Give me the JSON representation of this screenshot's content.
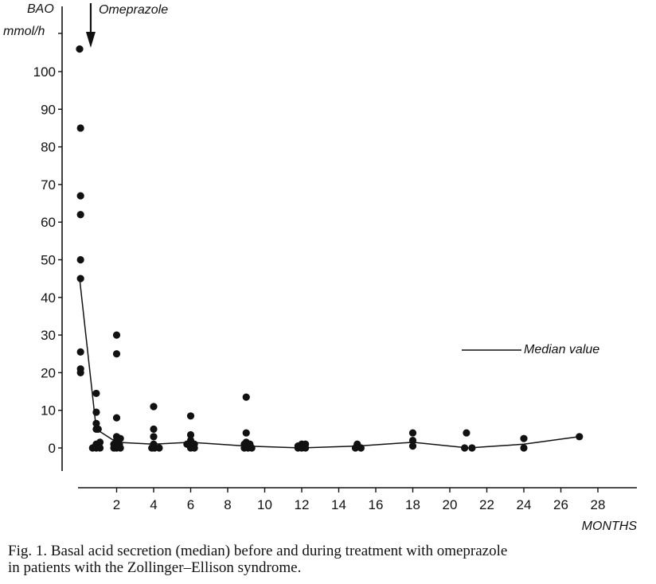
{
  "chart_data": {
    "type": "scatter",
    "yaxis_label_line1": "BAO",
    "yaxis_label_line2": "mmol/h",
    "xlabel": "MONTHS",
    "ylim": [
      -5,
      112
    ],
    "xlim": [
      -1.2,
      30
    ],
    "y_ticks": [
      0,
      10,
      20,
      30,
      40,
      50,
      60,
      70,
      80,
      90,
      100
    ],
    "x_ticks": [
      2,
      4,
      6,
      8,
      10,
      12,
      14,
      16,
      18,
      20,
      22,
      24,
      26,
      28
    ],
    "arrow_label": "Omeprazole",
    "arrow_x": 0.6,
    "points": [
      [
        0,
        106
      ],
      [
        0.05,
        85
      ],
      [
        0.05,
        67
      ],
      [
        0.05,
        62
      ],
      [
        0.05,
        50
      ],
      [
        0.05,
        45
      ],
      [
        0.05,
        25.5
      ],
      [
        0.05,
        21
      ],
      [
        0.05,
        20
      ],
      [
        0.7,
        0
      ],
      [
        0.9,
        0
      ],
      [
        0.9,
        1
      ],
      [
        1.0,
        0.5
      ],
      [
        0.9,
        5
      ],
      [
        1.0,
        5
      ],
      [
        0.9,
        6.5
      ],
      [
        0.9,
        9.5
      ],
      [
        0.9,
        14.5
      ],
      [
        1.1,
        0
      ],
      [
        1.1,
        1.5
      ],
      [
        2,
        30
      ],
      [
        2,
        25
      ],
      [
        2,
        8
      ],
      [
        2,
        3
      ],
      [
        2,
        2
      ],
      [
        1.85,
        1
      ],
      [
        2.15,
        1
      ],
      [
        1.85,
        0
      ],
      [
        2,
        0
      ],
      [
        2.2,
        0
      ],
      [
        2.2,
        2.5
      ],
      [
        4,
        11
      ],
      [
        4,
        5
      ],
      [
        4,
        3
      ],
      [
        4,
        1
      ],
      [
        3.9,
        0
      ],
      [
        4.05,
        0
      ],
      [
        4.3,
        0
      ],
      [
        6,
        8.5
      ],
      [
        6,
        3.5
      ],
      [
        6,
        2
      ],
      [
        6,
        1
      ],
      [
        5.8,
        1
      ],
      [
        6.2,
        1
      ],
      [
        6,
        0
      ],
      [
        6.2,
        0
      ],
      [
        9,
        13.5
      ],
      [
        9,
        4
      ],
      [
        9,
        1.5
      ],
      [
        8.9,
        1
      ],
      [
        9.2,
        1
      ],
      [
        8.9,
        0
      ],
      [
        9.1,
        0
      ],
      [
        9.3,
        0
      ],
      [
        12,
        1
      ],
      [
        11.8,
        0.5
      ],
      [
        12.2,
        1
      ],
      [
        11.8,
        0
      ],
      [
        12,
        0
      ],
      [
        12.2,
        0
      ],
      [
        15,
        1
      ],
      [
        14.9,
        0
      ],
      [
        15.2,
        0
      ],
      [
        18,
        4
      ],
      [
        18,
        2
      ],
      [
        18,
        0.5
      ],
      [
        20.9,
        4
      ],
      [
        20.8,
        0
      ],
      [
        21.2,
        0
      ],
      [
        24,
        2.5
      ],
      [
        24,
        0
      ],
      [
        27,
        3
      ]
    ],
    "median": {
      "x": [
        0,
        0.9,
        2,
        4,
        6,
        9,
        12,
        15,
        18,
        21,
        24,
        27
      ],
      "y": [
        45,
        5,
        1.5,
        1,
        1.5,
        0.5,
        0,
        0.5,
        1.5,
        0,
        1,
        3
      ]
    },
    "legend_label": "Median value",
    "legend_placement": "right, at y≈26"
  },
  "caption_line1": "Fig. 1. Basal acid secretion (median) before and during treatment with omeprazole",
  "caption_line2": "in patients with the Zollinger–Ellison syndrome."
}
